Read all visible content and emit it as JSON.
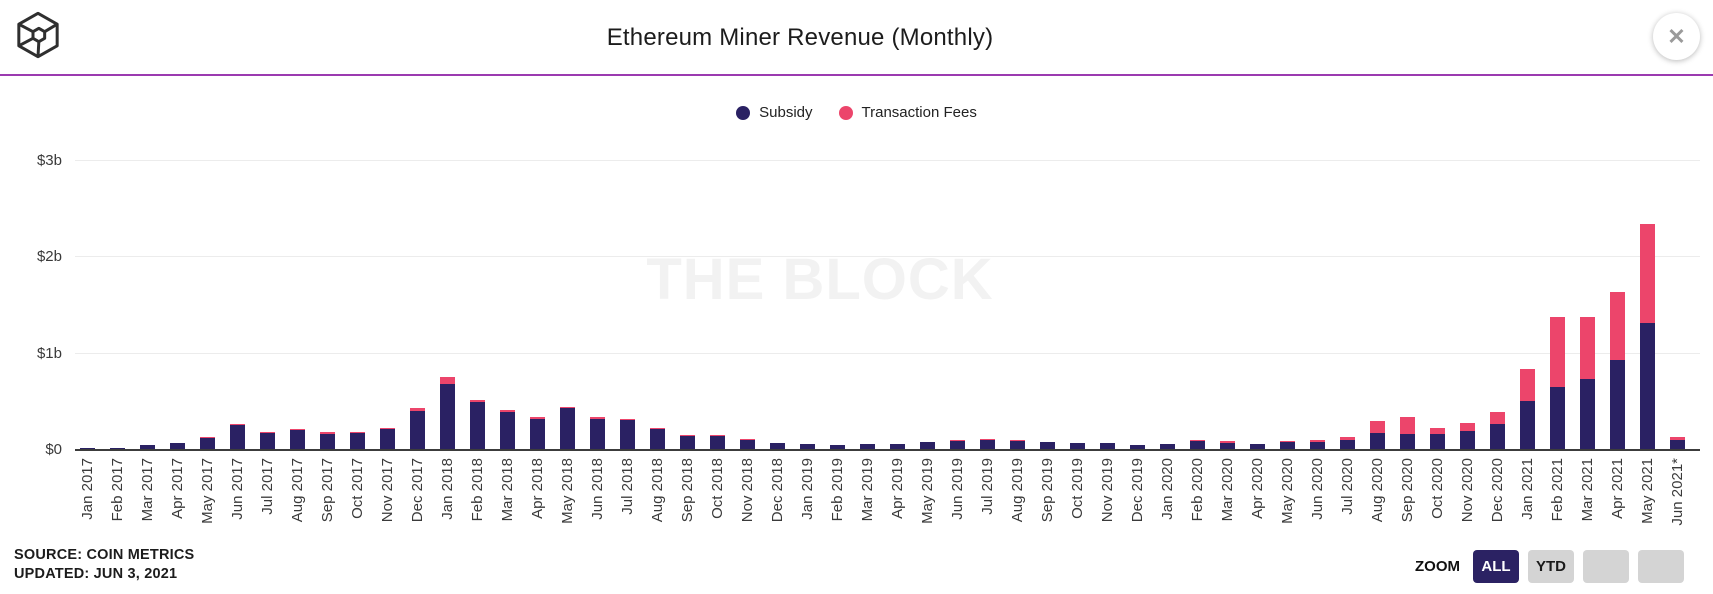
{
  "header": {
    "title": "Ethereum Miner Revenue (Monthly)",
    "close_label": "✕",
    "brand_logo": "the-block-cube-logo"
  },
  "legend": {
    "items": [
      {
        "label": "Subsidy",
        "color": "#2a2163"
      },
      {
        "label": "Transaction Fees",
        "color": "#ec456b"
      }
    ]
  },
  "watermark": "THE BLOCK",
  "footer": {
    "source_line1": "SOURCE: COIN METRICS",
    "source_line2": "UPDATED: JUN 3, 2021"
  },
  "zoom_controls": {
    "label": "ZOOM",
    "buttons": [
      {
        "label": "ALL",
        "active": true
      },
      {
        "label": "YTD",
        "active": false
      },
      {
        "label": "",
        "active": false
      },
      {
        "label": "",
        "active": false
      }
    ]
  },
  "colors": {
    "subsidy": "#2a2163",
    "fees": "#ec456b",
    "accent_line": "#9b3ab0",
    "axis": "#3c3c3c",
    "grid": "#ececec"
  },
  "chart_data": {
    "type": "bar",
    "stacked": true,
    "title": "Ethereum Miner Revenue (Monthly)",
    "unit": "USD billions",
    "grid": true,
    "legend_position": "top",
    "ylim": [
      0,
      3
    ],
    "y_ticks": [
      "$0",
      "$1b",
      "$2b",
      "$3b"
    ],
    "categories": [
      "Jan 2017",
      "Feb 2017",
      "Mar 2017",
      "Apr 2017",
      "May 2017",
      "Jun 2017",
      "Jul 2017",
      "Aug 2017",
      "Sep 2017",
      "Oct 2017",
      "Nov 2017",
      "Dec 2017",
      "Jan 2018",
      "Feb 2018",
      "Mar 2018",
      "Apr 2018",
      "May 2018",
      "Jun 2018",
      "Jul 2018",
      "Aug 2018",
      "Sep 2018",
      "Oct 2018",
      "Nov 2018",
      "Dec 2018",
      "Jan 2019",
      "Feb 2019",
      "Mar 2019",
      "Apr 2019",
      "May 2019",
      "Jun 2019",
      "Jul 2019",
      "Aug 2019",
      "Sep 2019",
      "Oct 2019",
      "Nov 2019",
      "Dec 2019",
      "Jan 2020",
      "Feb 2020",
      "Mar 2020",
      "Apr 2020",
      "May 2020",
      "Jun 2020",
      "Jul 2020",
      "Aug 2020",
      "Sep 2020",
      "Oct 2020",
      "Nov 2020",
      "Dec 2020",
      "Jan 2021",
      "Feb 2021",
      "Mar 2021",
      "Apr 2021",
      "May 2021",
      "Jun 2021*"
    ],
    "series": [
      {
        "name": "Subsidy",
        "color": "#2a2163",
        "values": [
          0.014,
          0.014,
          0.042,
          0.065,
          0.115,
          0.25,
          0.17,
          0.2,
          0.16,
          0.165,
          0.21,
          0.39,
          0.68,
          0.485,
          0.385,
          0.315,
          0.425,
          0.315,
          0.3,
          0.21,
          0.14,
          0.13,
          0.095,
          0.058,
          0.052,
          0.042,
          0.047,
          0.052,
          0.07,
          0.085,
          0.092,
          0.082,
          0.068,
          0.064,
          0.058,
          0.045,
          0.056,
          0.088,
          0.067,
          0.055,
          0.075,
          0.075,
          0.09,
          0.165,
          0.155,
          0.16,
          0.19,
          0.26,
          0.5,
          0.64,
          0.73,
          0.92,
          1.31,
          0.09
        ]
      },
      {
        "name": "Transaction Fees",
        "color": "#ec456b",
        "values": [
          0.001,
          0.001,
          0.003,
          0.005,
          0.008,
          0.012,
          0.01,
          0.01,
          0.012,
          0.008,
          0.012,
          0.035,
          0.07,
          0.025,
          0.018,
          0.015,
          0.015,
          0.015,
          0.012,
          0.01,
          0.008,
          0.008,
          0.007,
          0.005,
          0.004,
          0.004,
          0.004,
          0.005,
          0.006,
          0.008,
          0.008,
          0.007,
          0.006,
          0.006,
          0.005,
          0.004,
          0.005,
          0.007,
          0.013,
          0.005,
          0.01,
          0.02,
          0.03,
          0.125,
          0.175,
          0.055,
          0.08,
          0.12,
          0.33,
          0.73,
          0.64,
          0.71,
          1.03,
          0.03
        ]
      }
    ]
  }
}
